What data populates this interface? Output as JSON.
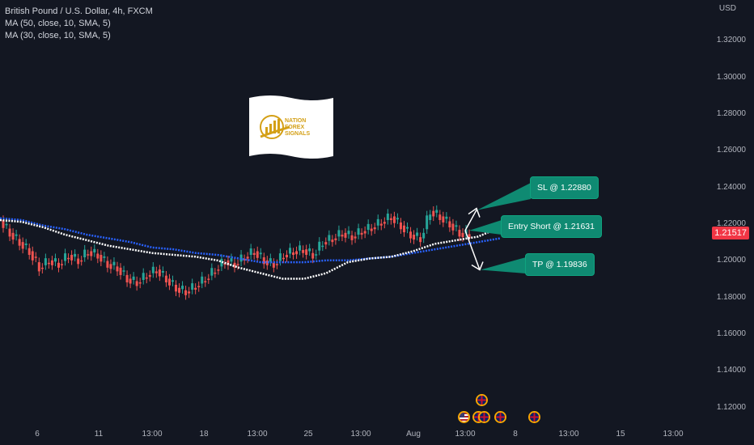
{
  "legend": {
    "symbol": "British Pound / U.S. Dollar, 4h, FXCM",
    "ma1": "MA (50, close, 10, SMA, 5)",
    "ma2": "MA (30, close, 10, SMA, 5)"
  },
  "price_axis": {
    "currency": "USD",
    "ticks": [
      "1.32000",
      "1.30000",
      "1.28000",
      "1.26000",
      "1.24000",
      "1.22000",
      "1.20000",
      "1.18000",
      "1.16000",
      "1.14000",
      "1.12000"
    ],
    "last_price": "1.21517"
  },
  "time_axis": {
    "ticks": [
      "6",
      "11",
      "13:00",
      "18",
      "13:00",
      "25",
      "13:00",
      "Aug",
      "13:00",
      "8",
      "13:00",
      "15",
      "13:00"
    ]
  },
  "annotations": {
    "sl": "SL @ 1.22880",
    "entry": "Entry Short @ 1.21631",
    "tp": "TP @ 1.19836"
  },
  "logo": {
    "line1": "NATION",
    "line2": "FOREX",
    "line3": "SIGNALS",
    "gold": "#d4a017"
  },
  "colors": {
    "background": "#131722",
    "up": "#26a69a",
    "down": "#ef5350",
    "ma50": "#ffffff",
    "ma30": "#2962ff",
    "callout": "#0f8a72"
  },
  "events": [
    "gb-flag-icon",
    "us-flag-icon",
    "gb-flag-icon",
    "gb-flag-icon",
    "gb-flag-icon",
    "gb-flag-icon"
  ],
  "chart_data": {
    "type": "candlestick",
    "ylabel": "USD",
    "ylim": [
      1.11,
      1.33
    ],
    "close_series_approx": [
      1.215,
      1.21,
      1.205,
      1.196,
      1.2,
      1.198,
      1.203,
      1.2,
      1.205,
      1.203,
      1.198,
      1.196,
      1.19,
      1.188,
      1.192,
      1.195,
      1.19,
      1.185,
      1.183,
      1.186,
      1.19,
      1.195,
      1.2,
      1.198,
      1.202,
      1.205,
      1.2,
      1.198,
      1.203,
      1.205,
      1.206,
      1.203,
      1.21,
      1.212,
      1.215,
      1.213,
      1.216,
      1.218,
      1.221,
      1.224,
      1.219,
      1.214,
      1.212,
      1.227,
      1.224,
      1.22,
      1.215,
      1.214
    ],
    "ma50_approx": [
      1.222,
      1.221,
      1.218,
      1.214,
      1.211,
      1.208,
      1.206,
      1.204,
      1.203,
      1.202,
      1.2,
      1.196,
      1.193,
      1.19,
      1.19,
      1.193,
      1.199,
      1.201,
      1.202,
      1.205,
      1.209,
      1.211,
      1.213,
      1.218
    ],
    "ma30_approx": [
      1.223,
      1.222,
      1.219,
      1.217,
      1.214,
      1.212,
      1.21,
      1.207,
      1.206,
      1.204,
      1.203,
      1.201,
      1.199,
      1.199,
      1.199,
      1.2,
      1.2,
      1.201,
      1.202,
      1.204,
      1.206,
      1.208,
      1.21,
      1.212
    ],
    "levels": {
      "sl": 1.2288,
      "entry": 1.21631,
      "tp": 1.19836,
      "last": 1.21517
    }
  }
}
